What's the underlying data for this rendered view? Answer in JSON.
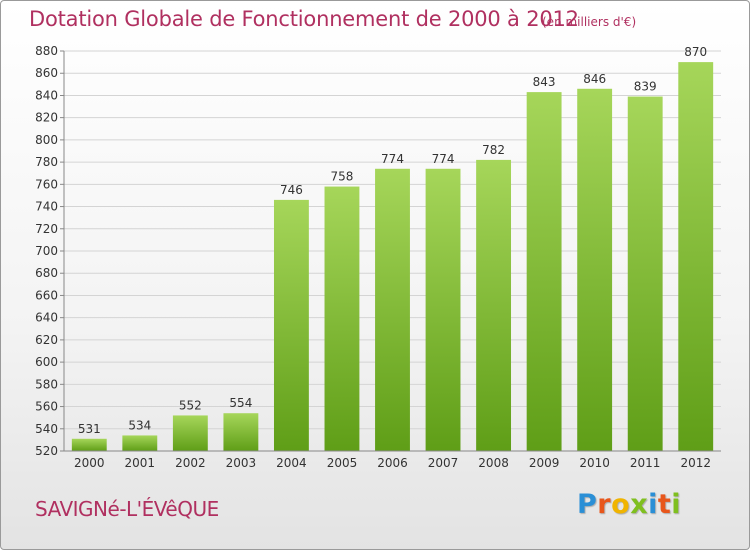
{
  "title": "Dotation Globale de Fonctionnement de 2000 à 2012",
  "subtitle": "(en milliers d'€)",
  "place": "SAVIGNé-L'ÉVêQUE",
  "logo": {
    "letters": [
      "P",
      "r",
      "o",
      "x",
      "i",
      "t",
      "i"
    ],
    "colors": [
      "#2a8fd6",
      "#e8561b",
      "#f0b400",
      "#7fbf1f",
      "#2a8fd6",
      "#e8561b",
      "#7fbf1f"
    ]
  },
  "colors": {
    "bar_top": "#a6d65a",
    "bar_bottom": "#5f9e17",
    "title": "#b03060"
  },
  "chart_data": {
    "type": "bar",
    "categories": [
      "2000",
      "2001",
      "2002",
      "2003",
      "2004",
      "2005",
      "2006",
      "2007",
      "2008",
      "2009",
      "2010",
      "2011",
      "2012"
    ],
    "values": [
      531,
      534,
      552,
      554,
      746,
      758,
      774,
      774,
      782,
      843,
      846,
      839,
      870
    ],
    "ylim": [
      520,
      880
    ],
    "yticks": [
      520,
      540,
      560,
      580,
      600,
      620,
      640,
      660,
      680,
      700,
      720,
      740,
      760,
      780,
      800,
      820,
      840,
      860,
      880
    ],
    "grid": true
  }
}
